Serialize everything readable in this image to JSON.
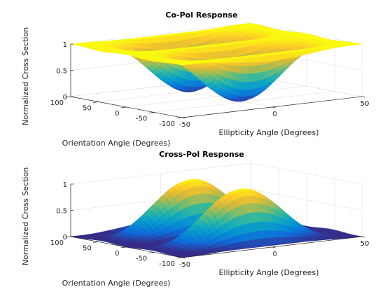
{
  "chart_data": [
    {
      "type": "surface",
      "title": "Co-Pol Response",
      "xlabel": "Ellipticity Angle (Degrees)",
      "ylabel": "Orientation Angle (Degrees)",
      "zlabel": "Normalized Cross Section",
      "xlim": [
        -50,
        50
      ],
      "ylim": [
        -100,
        100
      ],
      "zlim": [
        0,
        1
      ],
      "xticks": [
        -50,
        0,
        50
      ],
      "yticks": [
        -100,
        -50,
        0,
        50,
        100
      ],
      "zticks": [
        0,
        0.5,
        1
      ],
      "ytick_labels": [
        "-100",
        "-50",
        "0",
        "50",
        "100"
      ],
      "xtick_labels": [
        "-50",
        "0",
        "50"
      ],
      "ztick_labels": [
        "0",
        "0.5",
        "1"
      ],
      "formula": "cos^2(2*chi) * cos^2(2*psi) + sin^2(2*chi)",
      "grid": true,
      "colormap": "parula",
      "grid_resolution": 41
    },
    {
      "type": "surface",
      "title": "Cross-Pol Response",
      "xlabel": "Ellipticity Angle (Degrees)",
      "ylabel": "Orientation Angle (Degrees)",
      "zlabel": "Normalized Cross Section",
      "xlim": [
        -50,
        50
      ],
      "ylim": [
        -100,
        100
      ],
      "zlim": [
        0,
        1
      ],
      "xticks": [
        -50,
        0,
        50
      ],
      "yticks": [
        -100,
        -50,
        0,
        50,
        100
      ],
      "zticks": [
        0,
        0.5,
        1
      ],
      "ytick_labels": [
        "-100",
        "-50",
        "0",
        "50",
        "100"
      ],
      "xtick_labels": [
        "-50",
        "0",
        "50"
      ],
      "ztick_labels": [
        "0",
        "0.5",
        "1"
      ],
      "formula": "cos^2(2*chi) * sin^2(2*psi)",
      "grid": true,
      "colormap": "parula",
      "grid_resolution": 41
    }
  ]
}
